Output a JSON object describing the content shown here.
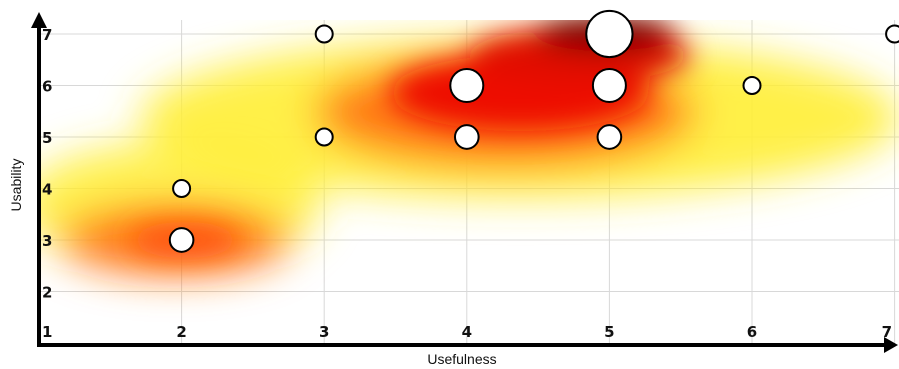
{
  "chart_data": {
    "type": "scatter",
    "title": "",
    "xlabel": "Usefulness",
    "ylabel": "Usability",
    "x_ticks": [
      "1",
      "2",
      "3",
      "4",
      "5",
      "6",
      "7"
    ],
    "y_ticks": [
      "2",
      "3",
      "4",
      "5",
      "6",
      "7"
    ],
    "xlim": [
      1,
      7
    ],
    "ylim": [
      1,
      7
    ],
    "grid": true,
    "legend": "none",
    "overlay": "heatmap of point density (white to yellow to red to dark red)",
    "points": [
      {
        "x": 2,
        "y": 3,
        "count": 2
      },
      {
        "x": 2,
        "y": 4,
        "count": 1
      },
      {
        "x": 3,
        "y": 5,
        "count": 1
      },
      {
        "x": 3,
        "y": 7,
        "count": 1
      },
      {
        "x": 4,
        "y": 5,
        "count": 2
      },
      {
        "x": 4,
        "y": 6,
        "count": 4
      },
      {
        "x": 5,
        "y": 5,
        "count": 2
      },
      {
        "x": 5,
        "y": 6,
        "count": 4
      },
      {
        "x": 5,
        "y": 7,
        "count": 8
      },
      {
        "x": 6,
        "y": 6,
        "count": 1
      },
      {
        "x": 7,
        "y": 7,
        "count": 1
      }
    ],
    "colors": {
      "point_fill": "#ffffff",
      "point_stroke": "#000000",
      "grid": "#d8d8d8",
      "axis": "#000000",
      "heat_low": "#ffee33",
      "heat_mid": "#ff7a14",
      "heat_high": "#ee1100",
      "heat_peak": "#7a0000"
    }
  }
}
